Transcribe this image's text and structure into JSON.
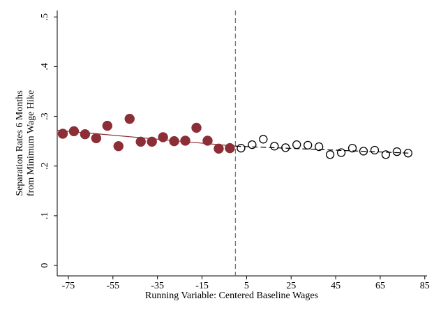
{
  "chart_data": {
    "type": "scatter",
    "y_label": [
      "Separation Rates 6 Months",
      "from Minimum Wage Hike"
    ],
    "x_label": "Running Variable: Centered Baseline Wages",
    "xlim": [
      -80,
      86
    ],
    "xticks": [
      -75,
      -55,
      -35,
      -15,
      5,
      25,
      45,
      65,
      85
    ],
    "ylim": [
      -0.021,
      0.513
    ],
    "yticks": [
      0,
      {
        "value": 0.1,
        "label": ".1"
      },
      {
        "value": 0.2,
        "label": ".2"
      },
      {
        "value": 0.3,
        "label": ".3"
      },
      {
        "value": 0.4,
        "label": ".4"
      },
      {
        "value": 0.5,
        "label": ".5"
      }
    ],
    "grid": false,
    "cutoff": 0,
    "series": [
      {
        "color": "#8b2e35",
        "marker": "filled",
        "x": [
          -77.5,
          -72.5,
          -67.5,
          -62.5,
          -57.5,
          -52.5,
          -47.5,
          -42.5,
          -37.5,
          -32.5,
          -27.5,
          -22.5,
          -17.5,
          -12.5,
          -7.5,
          -2.5
        ],
        "values": [
          0.265,
          0.27,
          0.264,
          0.256,
          0.281,
          0.24,
          0.295,
          0.249,
          0.249,
          0.258,
          0.25,
          0.251,
          0.277,
          0.251,
          0.235,
          0.236
        ]
      },
      {
        "color": "#000000",
        "marker": "hollow",
        "x": [
          2.5,
          7.5,
          12.5,
          17.5,
          22.5,
          27.5,
          32.5,
          37.5,
          42.5,
          47.5,
          52.5,
          57.5,
          62.5,
          67.5,
          72.5,
          77.5
        ],
        "values": [
          0.236,
          0.243,
          0.254,
          0.24,
          0.237,
          0.243,
          0.242,
          0.239,
          0.223,
          0.227,
          0.236,
          0.23,
          0.232,
          0.223,
          0.229,
          0.226
        ]
      }
    ],
    "fits": [
      {
        "color": "#8b2e35",
        "dashed": false,
        "x": [
          -80,
          0
        ],
        "values": [
          0.272,
          0.24
        ]
      },
      {
        "color": "#000000",
        "dashed": true,
        "x": [
          0,
          78
        ],
        "values": [
          0.24,
          0.226
        ]
      }
    ]
  }
}
